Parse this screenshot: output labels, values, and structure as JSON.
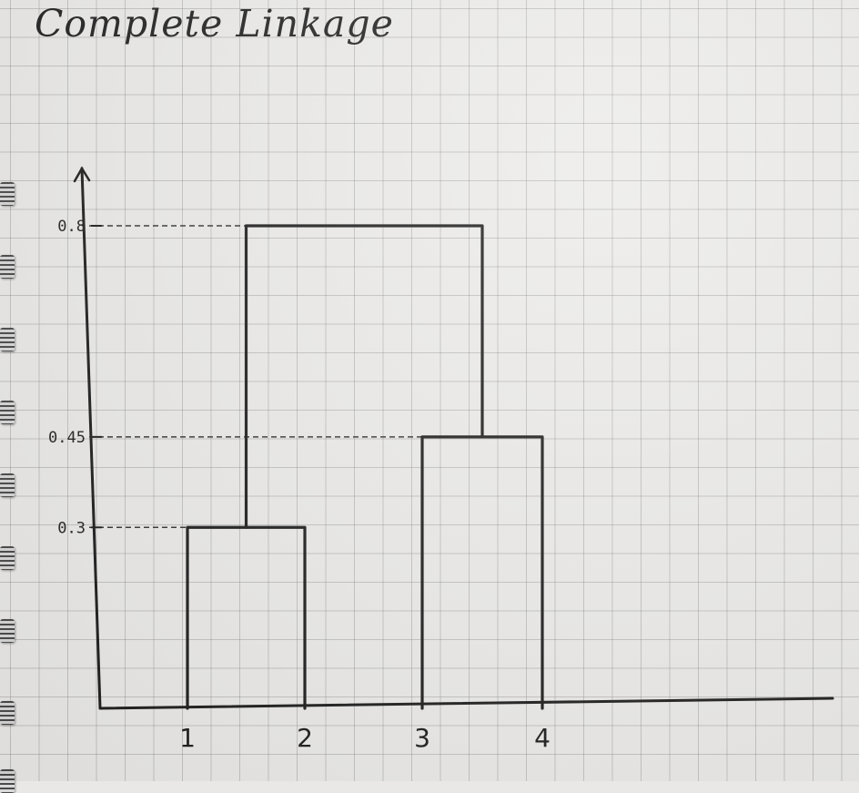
{
  "title": "Complete Linkage",
  "chart_data": {
    "type": "dendrogram",
    "title": "Complete Linkage",
    "leaves": [
      "1",
      "2",
      "3",
      "4"
    ],
    "y_ticks": [
      {
        "label": "0.8",
        "value": 0.8
      },
      {
        "label": "0.45",
        "value": 0.45
      },
      {
        "label": "0.3",
        "value": 0.3
      }
    ],
    "merges": [
      {
        "left": "1",
        "right": "2",
        "height": 0.3
      },
      {
        "left": "3",
        "right": "4",
        "height": 0.45
      },
      {
        "left": "(1,2)",
        "right": "(3,4)",
        "height": 0.8
      }
    ],
    "ylim": [
      0,
      0.8
    ],
    "grid": true
  },
  "colors": {
    "ink": "#1c1c1c",
    "paper": "#ecebe9",
    "grid": "#9a9a9a"
  }
}
